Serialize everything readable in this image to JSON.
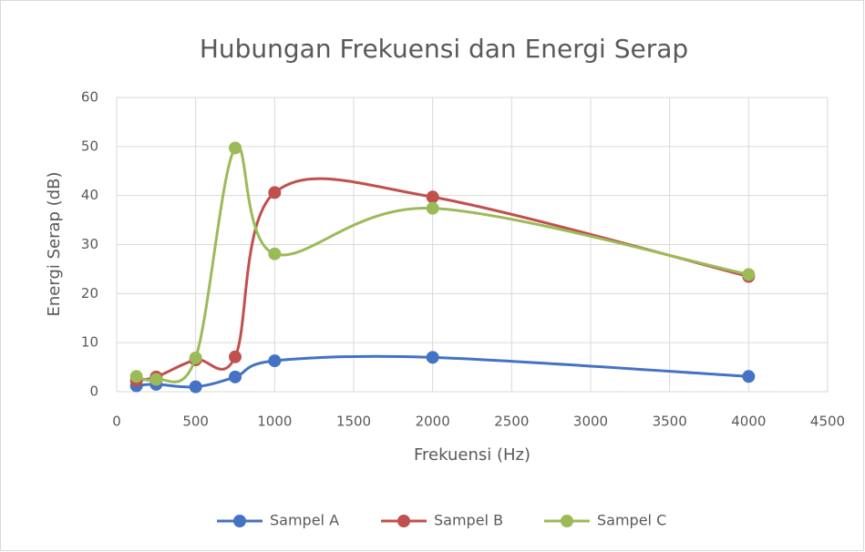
{
  "chart_data": {
    "type": "line",
    "title": "Hubungan Frekuensi dan Energi Serap",
    "xlabel": "Frekuensi (Hz)",
    "ylabel": "Energi Serap (dB)",
    "x": [
      125,
      250,
      500,
      750,
      1000,
      2000,
      4000
    ],
    "series": [
      {
        "name": "Sampel A",
        "color": "#4472c4",
        "values": [
          1.2,
          1.5,
          1.0,
          3.0,
          6.3,
          7.0,
          3.1
        ]
      },
      {
        "name": "Sampel B",
        "color": "#c0504d",
        "values": [
          2.3,
          3.0,
          6.5,
          7.1,
          40.6,
          39.7,
          23.5
        ]
      },
      {
        "name": "Sampel C",
        "color": "#9bbb59",
        "values": [
          3.1,
          2.5,
          6.9,
          49.7,
          28.1,
          37.4,
          23.9
        ]
      }
    ],
    "xlim": [
      0,
      4500
    ],
    "xticks": [
      0,
      500,
      1000,
      1500,
      2000,
      2500,
      3000,
      3500,
      4000,
      4500
    ],
    "ylim": [
      0,
      60
    ],
    "yticks": [
      0,
      10,
      20,
      30,
      40,
      50,
      60
    ],
    "grid": true,
    "legend": "bottom",
    "smooth": true
  }
}
